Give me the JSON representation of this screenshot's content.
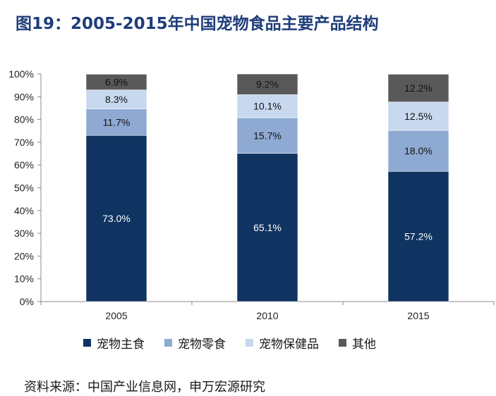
{
  "title": "图19：2005-2015年中国宠物食品主要产品结构",
  "source": "资料来源：中国产业信息网，申万宏源研究",
  "chart_data": {
    "type": "bar",
    "stacked": true,
    "categories": [
      "2005",
      "2010",
      "2015"
    ],
    "y_ticks": [
      "0%",
      "10%",
      "20%",
      "30%",
      "40%",
      "50%",
      "60%",
      "70%",
      "80%",
      "90%",
      "100%"
    ],
    "ylim": [
      0,
      100
    ],
    "legend_position": "bottom",
    "grid": false,
    "series": [
      {
        "name": "宠物主食",
        "color": "#0f3461",
        "values": [
          73.0,
          65.1,
          57.2
        ],
        "labels": [
          "73.0%",
          "65.1%",
          "57.2%"
        ],
        "label_color": "#ffffff"
      },
      {
        "name": "宠物零食",
        "color": "#8eaad3",
        "values": [
          11.7,
          15.7,
          18.0
        ],
        "labels": [
          "11.7%",
          "15.7%",
          "18.0%"
        ],
        "label_color": "#111111"
      },
      {
        "name": "宠物保健品",
        "color": "#c7d8ef",
        "values": [
          8.3,
          10.1,
          12.5
        ],
        "labels": [
          "8.3%",
          "10.1%",
          "12.5%"
        ],
        "label_color": "#111111"
      },
      {
        "name": "其他",
        "color": "#595959",
        "values": [
          6.9,
          9.2,
          12.2
        ],
        "labels": [
          "6.9%",
          "9.2%",
          "12.2%"
        ],
        "label_color": "#111111"
      }
    ]
  }
}
